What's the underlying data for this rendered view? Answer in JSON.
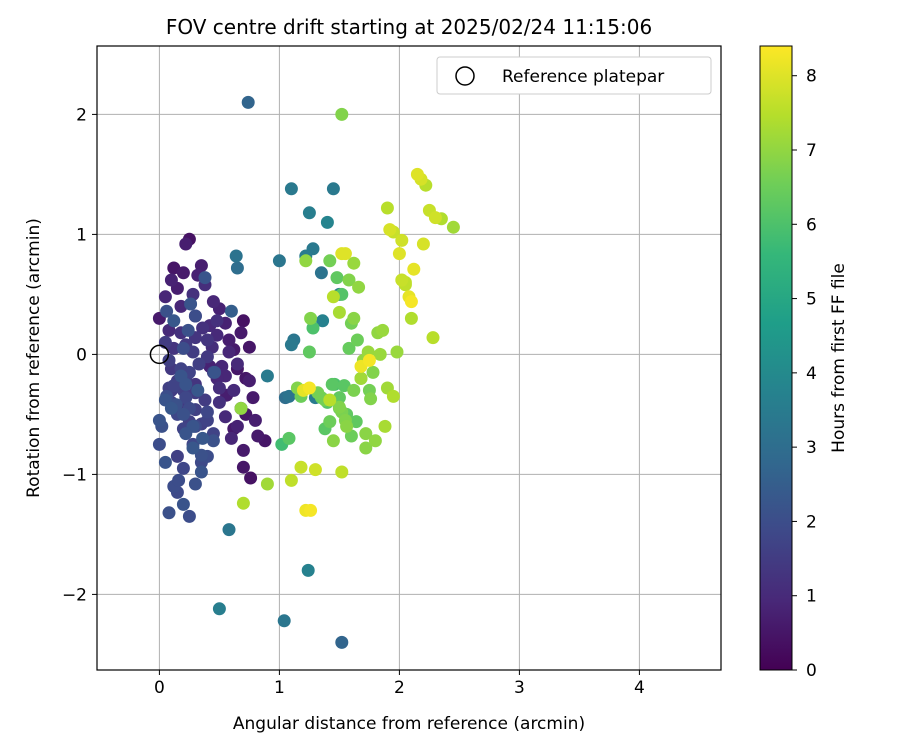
{
  "chart_data": {
    "type": "scatter",
    "title": "FOV centre drift starting at 2025/02/24 11:15:06",
    "xlabel": "Angular distance from reference (arcmin)",
    "ylabel": "Rotation from reference (arcmin)",
    "xlim": [
      -0.52,
      4.68
    ],
    "ylim": [
      -2.63,
      2.57
    ],
    "xticks": [
      0,
      1,
      2,
      3,
      4
    ],
    "yticks": [
      -2,
      -1,
      0,
      1,
      2
    ],
    "xtick_labels": [
      "0",
      "1",
      "2",
      "3",
      "4"
    ],
    "ytick_labels": [
      "−2",
      "−1",
      "0",
      "1",
      "2"
    ],
    "grid": true,
    "legend": {
      "position": "top-right",
      "entries": [
        {
          "label": "Reference platepar",
          "marker": "open-circle"
        }
      ]
    },
    "reference_point": {
      "x": 0,
      "y": 0
    },
    "colorbar": {
      "label": "Hours from first FF file",
      "min": 0,
      "max": 8.4,
      "ticks": [
        0,
        1,
        2,
        3,
        4,
        5,
        6,
        7,
        8
      ],
      "colormap": "viridis",
      "colors": [
        "#440154",
        "#482878",
        "#3e4989",
        "#31688e",
        "#26828e",
        "#1f9e89",
        "#35b779",
        "#6ece58",
        "#b5de2b",
        "#fde725"
      ]
    },
    "series": [
      {
        "x": [
          0.0,
          0.05,
          0.08,
          0.1,
          0.12,
          0.15,
          0.18,
          0.2,
          0.22,
          0.25,
          0.28,
          0.3,
          0.32,
          0.35,
          0.38,
          0.4,
          0.42,
          0.45,
          0.48,
          0.5,
          0.05,
          0.08,
          0.1,
          0.12,
          0.15,
          0.18,
          0.2,
          0.22,
          0.25,
          0.28,
          0.3,
          0.33,
          0.36,
          0.4,
          0.44,
          0.48,
          0.52,
          0.55,
          0.58,
          0.62,
          0.65,
          0.68,
          0.7,
          0.72,
          0.75,
          0.78,
          0.8,
          0.1,
          0.15,
          0.2,
          0.25,
          0.3,
          0.35,
          0.4,
          0.45,
          0.5,
          0.55,
          0.6,
          0.65,
          0.7,
          0.28,
          0.35,
          0.4,
          0.15,
          0.2,
          0.22,
          0.55,
          0.62,
          0.75,
          0.72,
          0.68,
          0.82,
          0.88,
          0.1,
          0.18,
          0.25,
          0.3,
          0.38,
          0.45,
          0.5,
          0.58,
          0.65,
          0.12,
          0.22,
          0.3,
          0.42,
          0.48,
          0.56,
          0.62,
          0.7,
          0.76,
          0.18,
          0.08,
          0.3
        ],
        "y": [
          0.3,
          0.48,
          0.2,
          0.62,
          0.72,
          0.55,
          0.4,
          0.68,
          0.92,
          0.96,
          0.5,
          0.32,
          0.66,
          0.74,
          0.58,
          0.12,
          0.24,
          0.44,
          0.28,
          0.38,
          0.1,
          -0.05,
          -0.12,
          0.05,
          -0.22,
          0.18,
          -0.3,
          0.08,
          -0.15,
          0.02,
          0.14,
          -0.08,
          0.22,
          -0.02,
          0.06,
          0.16,
          -0.1,
          0.26,
          0.12,
          0.04,
          -0.12,
          0.18,
          0.28,
          -0.2,
          0.06,
          -0.36,
          -0.55,
          -0.4,
          -0.5,
          -0.62,
          -0.45,
          -0.32,
          -0.58,
          -0.48,
          -0.66,
          -0.4,
          -0.52,
          -0.7,
          -0.6,
          -0.8,
          -0.75,
          -0.9,
          -0.55,
          -0.85,
          -0.95,
          -0.2,
          -0.18,
          -0.3,
          -0.22,
          -0.5,
          -0.45,
          -0.68,
          -0.72,
          -0.3,
          -0.44,
          -0.56,
          -0.25,
          -0.38,
          -0.15,
          -0.28,
          0.02,
          -0.08,
          -0.26,
          -0.36,
          -0.46,
          -0.1,
          -0.2,
          -0.34,
          -0.62,
          -0.94,
          -1.03,
          -0.12,
          -0.28,
          -0.6
        ],
        "hours": [
          0.6,
          0.9,
          1.0,
          0.8,
          0.5,
          0.7,
          0.9,
          0.6,
          0.7,
          0.4,
          1.2,
          1.0,
          0.8,
          0.7,
          1.1,
          1.3,
          1.0,
          0.9,
          1.2,
          0.8,
          1.5,
          1.6,
          1.4,
          1.3,
          1.5,
          1.2,
          1.6,
          1.4,
          1.7,
          1.5,
          1.3,
          1.6,
          1.2,
          1.4,
          1.1,
          1.0,
          0.9,
          0.8,
          0.7,
          0.6,
          0.5,
          0.6,
          0.4,
          0.5,
          0.5,
          0.6,
          0.7,
          1.6,
          1.8,
          1.7,
          1.9,
          1.5,
          1.6,
          1.8,
          1.7,
          1.2,
          1.0,
          0.9,
          0.8,
          0.6,
          1.8,
          1.9,
          1.7,
          1.6,
          1.8,
          1.5,
          0.9,
          1.0,
          0.7,
          0.5,
          0.4,
          0.6,
          0.5,
          1.5,
          1.4,
          1.6,
          1.3,
          1.5,
          1.7,
          1.1,
          0.9,
          1.0,
          1.7,
          1.8,
          1.6,
          0.8,
          0.9,
          0.7,
          0.6,
          0.5,
          0.4,
          1.7,
          1.6,
          1.9
        ]
      },
      {
        "x": [
          0.0,
          0.02,
          0.05,
          0.08,
          0.12,
          0.15,
          0.2,
          0.25,
          0.3,
          0.35,
          0.4,
          0.45,
          0.05,
          0.1,
          0.2,
          0.28,
          0.36,
          0.06,
          0.14,
          0.22,
          0.32,
          0.18,
          0.24,
          0.3,
          0.12,
          0.26,
          0.06,
          0.2,
          0.38,
          0.6,
          0.64,
          0.65,
          0.58,
          0.74,
          0.22,
          0.28,
          0.35,
          0.16,
          0.0,
          0.46
        ],
        "y": [
          -0.75,
          -0.6,
          -0.9,
          -1.32,
          -1.1,
          -1.15,
          -1.25,
          -1.35,
          -1.08,
          -0.98,
          -0.85,
          -0.72,
          -0.38,
          -0.45,
          -0.5,
          -0.6,
          -0.7,
          -0.35,
          -0.42,
          -0.25,
          -0.3,
          -0.18,
          0.2,
          0.32,
          0.28,
          0.42,
          0.36,
          0.05,
          0.64,
          0.36,
          0.82,
          0.72,
          -1.46,
          2.1,
          -0.66,
          -0.78,
          -0.84,
          -1.05,
          -0.55,
          -0.15
        ],
        "hours": [
          2.0,
          2.1,
          2.2,
          2.1,
          2.0,
          1.9,
          2.2,
          2.0,
          2.1,
          2.2,
          2.0,
          2.1,
          2.2,
          2.3,
          2.1,
          2.2,
          2.3,
          2.0,
          2.1,
          2.2,
          2.3,
          2.2,
          2.1,
          2.0,
          2.3,
          2.2,
          2.1,
          2.0,
          2.2,
          2.5,
          3.2,
          3.0,
          3.3,
          2.7,
          2.2,
          2.3,
          2.1,
          2.0,
          2.2,
          2.2
        ]
      },
      {
        "x": [
          0.9,
          1.0,
          1.05,
          1.08,
          1.1,
          1.12,
          1.22,
          1.25,
          1.28,
          1.3,
          1.35,
          1.4,
          1.45,
          1.5,
          1.24,
          1.04,
          0.5,
          1.52,
          1.1,
          1.36
        ],
        "y": [
          -0.18,
          0.78,
          -0.36,
          -0.35,
          1.38,
          0.12,
          0.82,
          1.18,
          0.88,
          -0.36,
          0.68,
          1.1,
          1.38,
          0.5,
          -1.8,
          -2.22,
          -2.12,
          -2.4,
          0.08,
          0.28
        ],
        "hours": [
          3.5,
          3.3,
          3.0,
          3.2,
          3.4,
          3.3,
          3.5,
          3.6,
          3.4,
          3.5,
          3.2,
          3.8,
          3.4,
          3.6,
          3.7,
          3.3,
          3.6,
          2.7,
          3.4,
          3.7
        ]
      },
      {
        "x": [
          1.02,
          1.08,
          1.15,
          1.18,
          1.25,
          1.28,
          1.32,
          1.38,
          1.42,
          1.45,
          1.5,
          1.52,
          1.55,
          1.58,
          1.6,
          1.62,
          1.65,
          1.68,
          1.72,
          1.75,
          1.42,
          1.48,
          1.52,
          1.58,
          1.62,
          1.66,
          1.38,
          1.44,
          1.5,
          1.56,
          1.6,
          1.64,
          1.7,
          1.74,
          1.78,
          1.82,
          1.86,
          1.9,
          1.95,
          1.98,
          1.22,
          1.26,
          1.35,
          1.4,
          1.46,
          1.54,
          1.68,
          1.72,
          1.76,
          1.8,
          1.84,
          1.88,
          1.5,
          1.56,
          1.62
        ],
        "y": [
          -0.75,
          -0.7,
          -0.28,
          -0.35,
          0.02,
          0.22,
          -0.32,
          -0.62,
          -0.56,
          -0.72,
          -0.36,
          -0.48,
          -0.55,
          0.05,
          0.26,
          0.3,
          0.12,
          -0.2,
          -0.66,
          -0.3,
          0.78,
          0.64,
          0.5,
          0.62,
          0.76,
          0.56,
          -0.38,
          -0.25,
          -0.44,
          -0.6,
          -0.68,
          -0.56,
          -0.05,
          0.02,
          -0.15,
          0.18,
          0.2,
          -0.28,
          -0.35,
          0.02,
          0.78,
          0.3,
          -0.36,
          -0.4,
          -0.25,
          -0.26,
          -0.2,
          -0.78,
          -0.37,
          -0.72,
          0.0,
          -0.6,
          -0.45,
          -0.5,
          -0.3
        ],
        "hours": [
          5.8,
          6.2,
          6.8,
          6.5,
          6.3,
          6.0,
          6.6,
          6.2,
          6.5,
          6.9,
          6.3,
          6.7,
          6.8,
          6.4,
          6.6,
          6.9,
          6.5,
          6.7,
          6.9,
          6.6,
          6.6,
          6.3,
          6.1,
          6.8,
          7.1,
          7.0,
          6.6,
          6.2,
          6.8,
          6.9,
          6.5,
          6.3,
          7.0,
          7.1,
          6.8,
          7.0,
          7.1,
          7.2,
          7.4,
          7.1,
          7.0,
          6.8,
          6.5,
          6.1,
          6.0,
          6.2,
          7.2,
          6.9,
          6.8,
          7.0,
          7.1,
          7.3,
          6.4,
          6.3,
          6.7
        ]
      },
      {
        "x": [
          0.68,
          0.7,
          0.9,
          1.1,
          1.18,
          1.22,
          1.26,
          1.3,
          1.42,
          1.52,
          1.55,
          1.9,
          1.92,
          1.95,
          2.0,
          2.02,
          2.05,
          2.08,
          2.1,
          2.15,
          2.18,
          2.22,
          2.25,
          2.3,
          2.35,
          2.45,
          1.52,
          1.52,
          1.75,
          1.68,
          2.12,
          2.05,
          2.28,
          2.02,
          2.1,
          2.2,
          1.45,
          1.5,
          1.2,
          1.25
        ],
        "y": [
          -0.45,
          -1.24,
          -1.08,
          -1.05,
          -0.94,
          -1.3,
          -1.3,
          -0.96,
          -0.38,
          -0.98,
          0.84,
          1.22,
          1.04,
          1.02,
          0.84,
          0.95,
          0.58,
          0.48,
          0.44,
          1.5,
          1.46,
          1.41,
          1.2,
          1.14,
          1.13,
          1.06,
          0.84,
          2.0,
          -0.05,
          -0.1,
          0.71,
          0.6,
          0.14,
          0.62,
          0.3,
          0.92,
          0.48,
          0.35,
          -0.3,
          -0.28
        ],
        "hours": [
          7.0,
          7.4,
          7.2,
          7.6,
          7.7,
          8.2,
          8.3,
          7.8,
          7.5,
          7.6,
          8.0,
          7.5,
          7.9,
          7.7,
          8.0,
          7.8,
          7.6,
          8.1,
          8.3,
          8.0,
          7.9,
          7.5,
          7.7,
          7.8,
          7.4,
          7.2,
          8.0,
          6.8,
          8.3,
          8.2,
          8.1,
          7.6,
          7.5,
          7.7,
          7.4,
          7.9,
          7.5,
          7.3,
          8.1,
          8.3
        ]
      }
    ]
  }
}
